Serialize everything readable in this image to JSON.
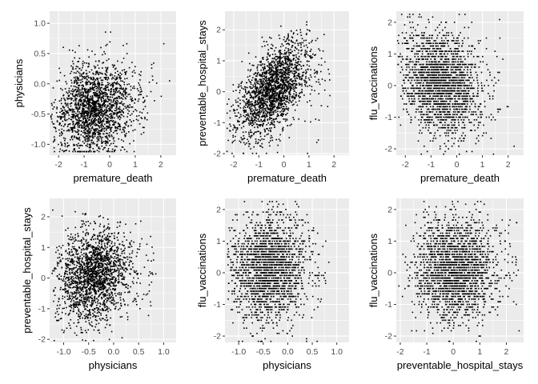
{
  "colors": {
    "panel_background": "#EBEBEB",
    "grid": "#FFFFFF",
    "points": "#000000",
    "tick_text": "#4D4D4D"
  },
  "chart_data": [
    {
      "type": "scatter",
      "xlabel": "premature_death",
      "ylabel": "physicians",
      "xlim": [
        -2.35,
        2.6
      ],
      "ylim": [
        -1.18,
        1.2
      ],
      "xticks": [
        "-2",
        "-1",
        "0",
        "1",
        "2"
      ],
      "xtick_values": [
        -2,
        -1,
        0,
        1,
        2
      ],
      "yticks": [
        "-1.0",
        "-0.5",
        "0.0",
        "0.5",
        "1.0"
      ],
      "ytick_values": [
        -1.0,
        -0.5,
        0.0,
        0.5,
        1.0
      ],
      "grid": true,
      "point_count_approx": 2000,
      "x_center": -0.6,
      "x_spread": 0.75,
      "y_center": -0.4,
      "y_spread": 0.38,
      "correlation": 0.18
    },
    {
      "type": "scatter",
      "xlabel": "premature_death",
      "ylabel": "preventable_hospital_stays",
      "xlim": [
        -2.35,
        2.6
      ],
      "ylim": [
        -2.05,
        2.6
      ],
      "xticks": [
        "-2",
        "-1",
        "0",
        "1",
        "2"
      ],
      "xtick_values": [
        -2,
        -1,
        0,
        1,
        2
      ],
      "yticks": [
        "-2",
        "-1",
        "0",
        "1",
        "2"
      ],
      "ytick_values": [
        -2,
        -1,
        0,
        1,
        2
      ],
      "grid": true,
      "point_count_approx": 2000,
      "x_center": -0.4,
      "x_spread": 0.7,
      "y_center": 0.1,
      "y_spread": 0.75,
      "correlation": 0.55
    },
    {
      "type": "scatter",
      "xlabel": "premature_death",
      "ylabel": "flu_vaccinations",
      "xlim": [
        -2.35,
        2.6
      ],
      "ylim": [
        -2.2,
        2.35
      ],
      "xticks": [
        "-2",
        "-1",
        "0",
        "1",
        "2"
      ],
      "xtick_values": [
        -2,
        -1,
        0,
        1,
        2
      ],
      "yticks": [
        "-2",
        "-1",
        "0",
        "1",
        "2"
      ],
      "ytick_values": [
        -2,
        -1,
        0,
        1,
        2
      ],
      "grid": true,
      "point_count_approx": 2000,
      "x_center": -0.6,
      "x_spread": 0.75,
      "y_center": 0.1,
      "y_spread": 0.85,
      "correlation": -0.2,
      "y_banded": true
    },
    {
      "type": "scatter",
      "xlabel": "physicians",
      "ylabel": "preventable_hospital_stays",
      "xlim": [
        -1.28,
        1.25
      ],
      "ylim": [
        -2.1,
        2.6
      ],
      "xticks": [
        "-1.0",
        "-0.5",
        "0.0",
        "0.5",
        "1.0"
      ],
      "xtick_values": [
        -1.0,
        -0.5,
        0.0,
        0.5,
        1.0
      ],
      "yticks": [
        "-2",
        "-1",
        "0",
        "1",
        "2"
      ],
      "ytick_values": [
        -2,
        -1,
        0,
        1,
        2
      ],
      "grid": true,
      "point_count_approx": 2000,
      "x_center": -0.4,
      "x_spread": 0.38,
      "y_center": 0.1,
      "y_spread": 0.75,
      "correlation": 0.15
    },
    {
      "type": "scatter",
      "xlabel": "physicians",
      "ylabel": "flu_vaccinations",
      "xlim": [
        -1.28,
        1.25
      ],
      "ylim": [
        -2.2,
        2.35
      ],
      "xticks": [
        "-1.0",
        "-0.5",
        "0.0",
        "0.5",
        "1.0"
      ],
      "xtick_values": [
        -1.0,
        -0.5,
        0.0,
        0.5,
        1.0
      ],
      "yticks": [
        "-2",
        "-1",
        "0",
        "1",
        "2"
      ],
      "ytick_values": [
        -2,
        -1,
        0,
        1,
        2
      ],
      "grid": true,
      "point_count_approx": 2000,
      "x_center": -0.4,
      "x_spread": 0.38,
      "y_center": 0.1,
      "y_spread": 0.85,
      "correlation": 0.05,
      "y_banded": true
    },
    {
      "type": "scatter",
      "xlabel": "preventable_hospital_stays",
      "ylabel": "flu_vaccinations",
      "xlim": [
        -2.15,
        2.65
      ],
      "ylim": [
        -2.2,
        2.35
      ],
      "xticks": [
        "-2",
        "-1",
        "0",
        "1",
        "2"
      ],
      "xtick_values": [
        -2,
        -1,
        0,
        1,
        2
      ],
      "yticks": [
        "-2",
        "-1",
        "0",
        "1",
        "2"
      ],
      "ytick_values": [
        -2,
        -1,
        0,
        1,
        2
      ],
      "grid": true,
      "point_count_approx": 2000,
      "x_center": 0.1,
      "x_spread": 0.75,
      "y_center": 0.1,
      "y_spread": 0.85,
      "correlation": 0.0,
      "y_banded": true
    }
  ]
}
